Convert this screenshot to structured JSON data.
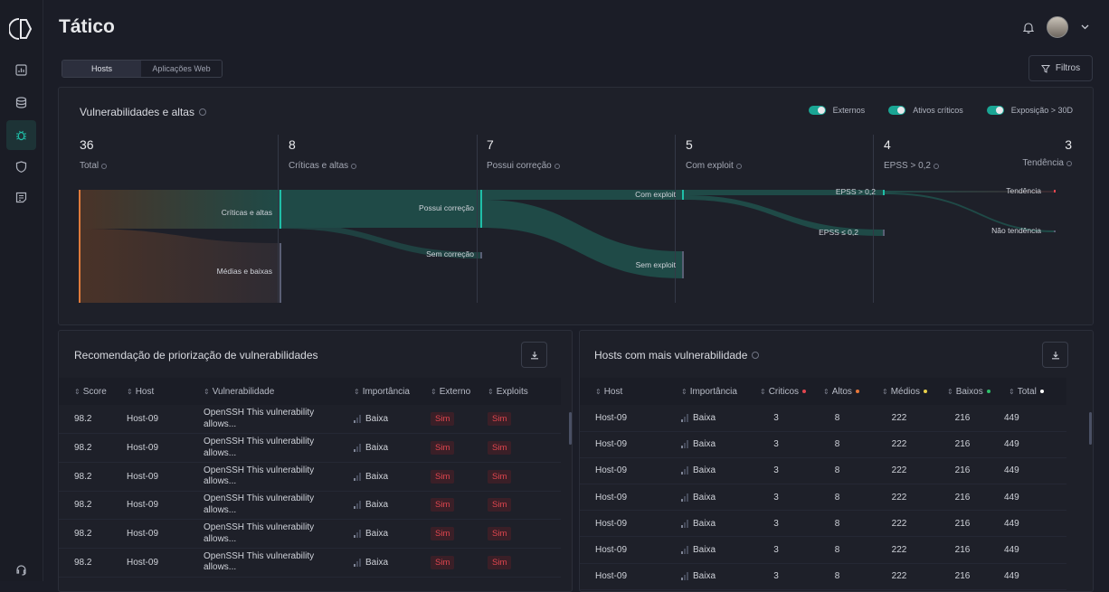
{
  "app": {
    "title": "Tático"
  },
  "sidebar": {
    "items": [
      {
        "icon": "chart-icon"
      },
      {
        "icon": "database-icon"
      },
      {
        "icon": "bug-icon",
        "active": true
      },
      {
        "icon": "shield-icon"
      },
      {
        "icon": "report-icon"
      },
      {
        "icon": "headset-icon"
      }
    ]
  },
  "tabs": [
    {
      "label": "Hosts",
      "active": true
    },
    {
      "label": "Aplicações Web",
      "active": false
    }
  ],
  "filters_label": "Filtros",
  "funnel": {
    "title": "Vulnerabilidades e altas",
    "toggles": [
      {
        "label": "Externos",
        "on": true
      },
      {
        "label": "Ativos críticos",
        "on": true
      },
      {
        "label": "Exposição > 30D",
        "on": true
      }
    ],
    "stats": [
      {
        "value": "36",
        "label": "Total"
      },
      {
        "value": "8",
        "label": "Críticas e altas"
      },
      {
        "value": "7",
        "label": "Possui correção"
      },
      {
        "value": "5",
        "label": "Com exploit"
      },
      {
        "value": "4",
        "label": "EPSS > 0,2"
      },
      {
        "value": "3",
        "label": "Tendência"
      }
    ],
    "nodes": {
      "criticas": "Críticas e altas",
      "medias": "Médias e baixas",
      "possui": "Possui correção",
      "sem_correcao": "Sem correção",
      "com_exploit": "Com exploit",
      "sem_exploit": "Sem exploit",
      "epss_high": "EPSS > 0,2",
      "epss_low": "EPSS ≤ 0,2",
      "tendencia": "Tendência",
      "nao_tendencia": "Não tendência"
    },
    "colors": {
      "total": "#e07b3c",
      "teal": "#1fbfa8",
      "flow": "#1f4a47",
      "grey": "#5a5f75",
      "tendencia": "#e0464f"
    }
  },
  "recs": {
    "title": "Recomendação de priorização de vulnerabilidades",
    "columns": [
      "Score",
      "Host",
      "Vulnerabilidade",
      "Importância",
      "Externo",
      "Exploits"
    ],
    "rows": [
      {
        "score": "98.2",
        "host": "Host-09",
        "vuln": "OpenSSH This vulnerability allows...",
        "imp": "Baixa",
        "ext": "Sim",
        "exp": "Sim"
      },
      {
        "score": "98.2",
        "host": "Host-09",
        "vuln": "OpenSSH This vulnerability allows...",
        "imp": "Baixa",
        "ext": "Sim",
        "exp": "Sim"
      },
      {
        "score": "98.2",
        "host": "Host-09",
        "vuln": "OpenSSH This vulnerability allows...",
        "imp": "Baixa",
        "ext": "Sim",
        "exp": "Sim"
      },
      {
        "score": "98.2",
        "host": "Host-09",
        "vuln": "OpenSSH This vulnerability allows...",
        "imp": "Baixa",
        "ext": "Sim",
        "exp": "Sim"
      },
      {
        "score": "98.2",
        "host": "Host-09",
        "vuln": "OpenSSH This vulnerability allows...",
        "imp": "Baixa",
        "ext": "Sim",
        "exp": "Sim"
      },
      {
        "score": "98.2",
        "host": "Host-09",
        "vuln": "OpenSSH This vulnerability allows...",
        "imp": "Baixa",
        "ext": "Sim",
        "exp": "Sim"
      }
    ]
  },
  "hosts": {
    "title": "Hosts com mais vulnerabilidade",
    "columns": [
      {
        "label": "Host"
      },
      {
        "label": "Importância"
      },
      {
        "label": "Criticos",
        "dot": "#e0464f"
      },
      {
        "label": "Altos",
        "dot": "#e8773a"
      },
      {
        "label": "Médios",
        "dot": "#e8cf4a"
      },
      {
        "label": "Baixos",
        "dot": "#2fc06a"
      },
      {
        "label": "Total",
        "dot": "#ffffff"
      }
    ],
    "rows": [
      {
        "host": "Host-09",
        "imp": "Baixa",
        "crit": "3",
        "alt": "8",
        "med": "222",
        "bai": "216",
        "tot": "449"
      },
      {
        "host": "Host-09",
        "imp": "Baixa",
        "crit": "3",
        "alt": "8",
        "med": "222",
        "bai": "216",
        "tot": "449"
      },
      {
        "host": "Host-09",
        "imp": "Baixa",
        "crit": "3",
        "alt": "8",
        "med": "222",
        "bai": "216",
        "tot": "449"
      },
      {
        "host": "Host-09",
        "imp": "Baixa",
        "crit": "3",
        "alt": "8",
        "med": "222",
        "bai": "216",
        "tot": "449"
      },
      {
        "host": "Host-09",
        "imp": "Baixa",
        "crit": "3",
        "alt": "8",
        "med": "222",
        "bai": "216",
        "tot": "449"
      },
      {
        "host": "Host-09",
        "imp": "Baixa",
        "crit": "3",
        "alt": "8",
        "med": "222",
        "bai": "216",
        "tot": "449"
      },
      {
        "host": "Host-09",
        "imp": "Baixa",
        "crit": "3",
        "alt": "8",
        "med": "222",
        "bai": "216",
        "tot": "449"
      }
    ]
  }
}
